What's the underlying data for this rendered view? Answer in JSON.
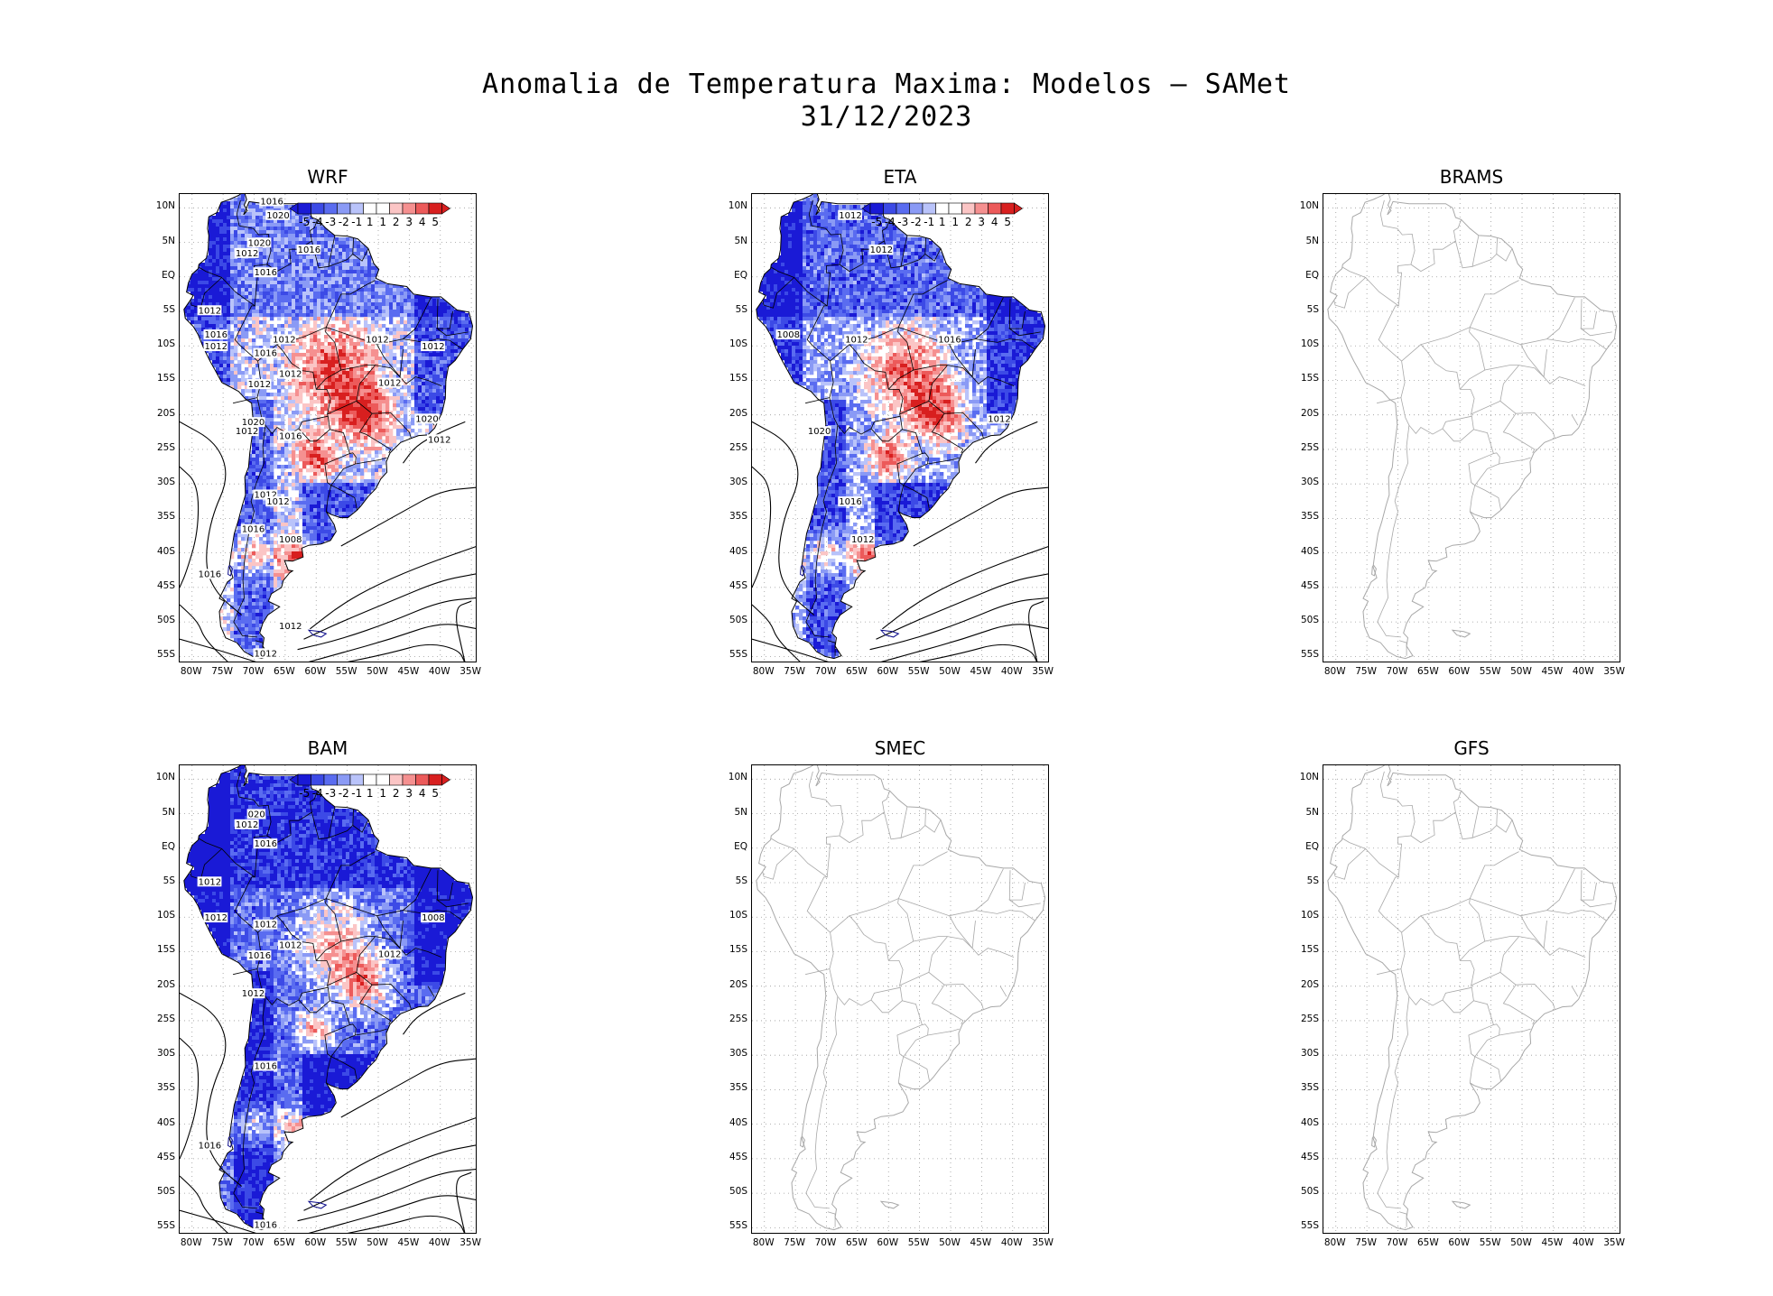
{
  "title": {
    "line1": "Anomalia de Temperatura Maxima: Modelos — SAMet",
    "line2": "31/12/2023"
  },
  "axes": {
    "lat_labels": [
      "10N",
      "5N",
      "EQ",
      "5S",
      "10S",
      "15S",
      "20S",
      "25S",
      "30S",
      "35S",
      "40S",
      "45S",
      "50S",
      "55S"
    ],
    "lon_labels": [
      "80W",
      "75W",
      "70W",
      "65W",
      "60W",
      "55W",
      "50W",
      "45W",
      "40W",
      "35W"
    ],
    "lat_range": [
      -56,
      12
    ],
    "lon_range": [
      -82,
      -34
    ],
    "grid": "dotted"
  },
  "colorbar": {
    "labels": [
      "-5",
      "-4",
      "-3",
      "-2",
      "-1",
      "1",
      "1",
      "2",
      "3",
      "4",
      "5"
    ],
    "colors": [
      "#1a1ad6",
      "#3c4ae6",
      "#5a6cf0",
      "#8a9af5",
      "#b9c3fa",
      "#ffffff",
      "#ffffff",
      "#fbc5c5",
      "#f59090",
      "#ec5a5a",
      "#d81f1f"
    ]
  },
  "panels": [
    {
      "name": "WRF",
      "has_data": true,
      "isobars": [
        "1016",
        "1012",
        "1012",
        "1016",
        "1012",
        "1012",
        "1020",
        "1012",
        "1016",
        "1012",
        "1020",
        "1016",
        "1012",
        "1012",
        "1012",
        "1012",
        "1016",
        "1016",
        "1012",
        "1020",
        "1016",
        "1012",
        "1016",
        "1012",
        "1020",
        "1012",
        "1012",
        "1008"
      ]
    },
    {
      "name": "ETA",
      "has_data": true,
      "isobars": [
        "1012",
        "1012",
        "1012",
        "1008",
        "1016",
        "1012",
        "1020",
        "1016",
        "1012"
      ]
    },
    {
      "name": "BRAMS",
      "has_data": false,
      "isobars": []
    },
    {
      "name": "BAM",
      "has_data": true,
      "isobars": [
        "1012",
        "1012",
        "1012",
        "1016",
        "1012",
        "1012",
        "1016",
        "1016",
        "1016",
        "020",
        "1016",
        "1012",
        "1012",
        "1008"
      ]
    },
    {
      "name": "SMEC",
      "has_data": false,
      "isobars": []
    },
    {
      "name": "GFS",
      "has_data": false,
      "isobars": []
    }
  ]
}
